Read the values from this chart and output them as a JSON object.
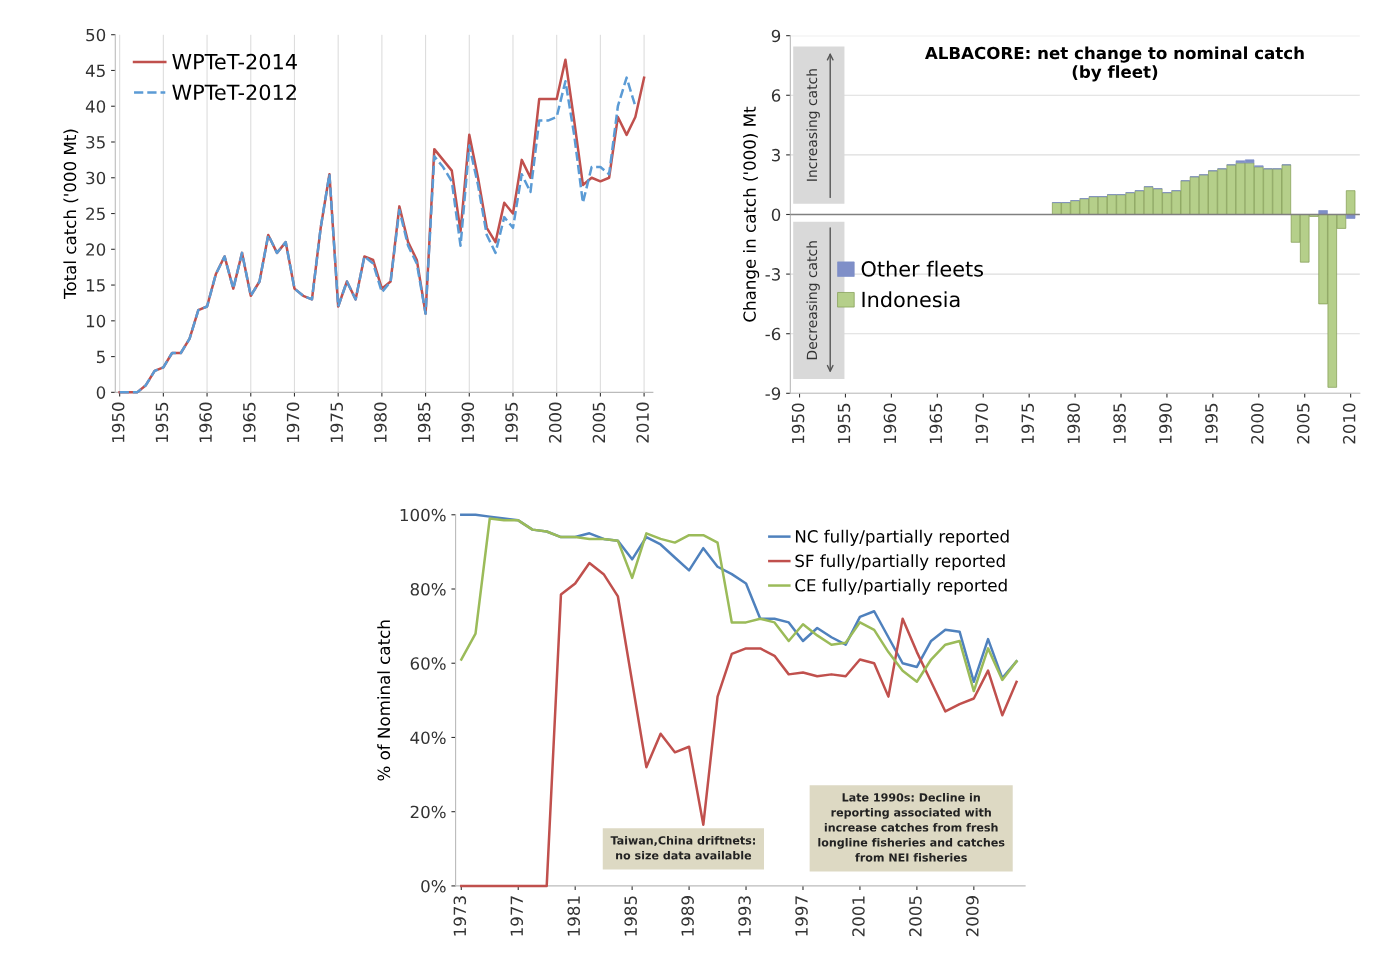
{
  "chart_data": [
    {
      "type": "line",
      "ylabel": "Total catch ('000 Mt)",
      "x": [
        1950,
        1951,
        1952,
        1953,
        1954,
        1955,
        1956,
        1957,
        1958,
        1959,
        1960,
        1961,
        1962,
        1963,
        1964,
        1965,
        1966,
        1967,
        1968,
        1969,
        1970,
        1971,
        1972,
        1973,
        1974,
        1975,
        1976,
        1977,
        1978,
        1979,
        1980,
        1981,
        1982,
        1983,
        1984,
        1985,
        1986,
        1987,
        1988,
        1989,
        1990,
        1991,
        1992,
        1993,
        1994,
        1995,
        1996,
        1997,
        1998,
        1999,
        2000,
        2001,
        2002,
        2003,
        2004,
        2005,
        2006,
        2007,
        2008,
        2009,
        2010
      ],
      "series": [
        {
          "name": "WPTeT-2014",
          "color": "#c0504d",
          "line_style": "solid",
          "values": [
            0,
            0,
            0,
            1,
            3,
            3.5,
            5.5,
            5.5,
            7.5,
            11.5,
            12,
            16.5,
            19,
            14.5,
            19.5,
            13.5,
            15.5,
            22,
            19.5,
            21,
            14.5,
            13.5,
            13,
            23,
            30.5,
            12,
            15.5,
            13,
            19,
            18.5,
            14.5,
            15.5,
            26,
            21,
            18.5,
            11,
            34,
            32.5,
            31,
            22.5,
            36,
            30,
            23,
            21,
            26.5,
            25,
            32.5,
            30,
            41,
            41,
            41,
            46.5,
            38,
            29,
            30,
            29.5,
            30,
            38.5,
            36,
            38.5,
            44
          ]
        },
        {
          "name": "WPTeT-2012",
          "color": "#5b9bd5",
          "line_style": "dashed",
          "values": [
            0,
            0,
            0,
            1,
            3,
            3.5,
            5.5,
            5.5,
            7.5,
            11.5,
            12,
            16.5,
            19,
            14.5,
            19.5,
            13.5,
            15.5,
            22,
            19.5,
            21,
            14.5,
            13.5,
            13,
            23,
            30.5,
            12,
            15.5,
            13,
            19,
            18,
            14,
            15.5,
            25.5,
            20.5,
            18,
            11,
            33,
            31.5,
            29.5,
            20.5,
            34.5,
            29,
            22,
            19.5,
            24.5,
            23,
            30.5,
            28,
            38,
            38,
            38.5,
            43.5,
            36,
            26.5,
            31.5,
            31.5,
            30.5,
            40,
            44,
            40,
            null
          ]
        }
      ],
      "xlim": [
        1949.5,
        2011
      ],
      "xticks": [
        1950,
        1955,
        1960,
        1965,
        1970,
        1975,
        1980,
        1985,
        1990,
        1995,
        2000,
        2005,
        2010
      ],
      "ylim": [
        0,
        50
      ],
      "yticks": [
        0,
        5,
        10,
        15,
        20,
        25,
        30,
        35,
        40,
        45,
        50
      ],
      "grid": "x",
      "legend": "top left"
    },
    {
      "type": "bar",
      "title": "ALBACORE: net change to nominal catch\n(by fleet)",
      "ylabel": "Change in catch ('000) Mt",
      "stacked": true,
      "x": [
        1978,
        1979,
        1980,
        1981,
        1982,
        1983,
        1984,
        1985,
        1986,
        1987,
        1988,
        1989,
        1990,
        1991,
        1992,
        1993,
        1994,
        1995,
        1996,
        1997,
        1998,
        1999,
        2000,
        2001,
        2002,
        2003,
        2004,
        2005,
        2006,
        2007,
        2008,
        2009,
        2010
      ],
      "series": [
        {
          "name": "Indonesia",
          "color": "#b5cf8a",
          "values": [
            0.6,
            0.6,
            0.7,
            0.8,
            0.9,
            0.9,
            1.0,
            1.0,
            1.1,
            1.2,
            1.4,
            1.3,
            1.1,
            1.2,
            1.7,
            1.9,
            2.0,
            2.2,
            2.3,
            2.5,
            2.6,
            2.6,
            2.4,
            2.3,
            2.3,
            2.5,
            -1.4,
            -2.4,
            -0.1,
            -4.5,
            -8.7,
            -0.7,
            1.2
          ]
        },
        {
          "name": "Other fleets",
          "color": "#7f8fc8",
          "values": [
            0,
            0,
            0,
            0,
            0,
            0,
            0,
            0,
            0,
            0,
            0,
            0,
            0,
            0,
            0,
            0,
            0,
            0,
            0,
            0,
            0.1,
            0.15,
            0.05,
            0,
            0,
            0,
            0,
            0,
            0,
            0.2,
            0,
            0,
            -0.2
          ]
        }
      ],
      "xlim": [
        1949,
        2011
      ],
      "xticks": [
        1950,
        1955,
        1960,
        1965,
        1970,
        1975,
        1980,
        1985,
        1990,
        1995,
        2000,
        2005,
        2010
      ],
      "ylim": [
        -9,
        9
      ],
      "yticks": [
        -9,
        -6,
        -3,
        0,
        3,
        6,
        9
      ],
      "grid": "y",
      "legend": "left",
      "annotations": [
        "Increasing catch",
        "Decreasing catch"
      ]
    },
    {
      "type": "line",
      "ylabel": "% of Nominal catch",
      "x": [
        1973,
        1974,
        1975,
        1976,
        1977,
        1978,
        1979,
        1980,
        1981,
        1982,
        1983,
        1984,
        1985,
        1986,
        1987,
        1988,
        1989,
        1990,
        1991,
        1992,
        1993,
        1994,
        1995,
        1996,
        1997,
        1998,
        1999,
        2000,
        2001,
        2002,
        2003,
        2004,
        2005,
        2006,
        2007,
        2008,
        2009,
        2010,
        2011,
        2012
      ],
      "series": [
        {
          "name": "NC fully/partially reported",
          "color": "#4f81bd",
          "values": [
            100,
            100,
            99.5,
            99,
            98.5,
            96,
            95.5,
            94,
            94,
            95,
            93.5,
            93,
            88,
            94,
            92,
            88.5,
            85,
            91,
            86,
            84,
            81.5,
            72,
            72,
            71,
            66,
            69.5,
            67,
            65,
            72.5,
            74,
            67,
            60,
            59,
            66,
            69,
            68.5,
            55,
            66.5,
            56,
            60.5
          ]
        },
        {
          "name": "SF fully/partially reported",
          "color": "#c0504d",
          "values": [
            0,
            0,
            0,
            0,
            0,
            0,
            0,
            78.5,
            81.5,
            87,
            84,
            78,
            55,
            32,
            41,
            36,
            37.5,
            16.5,
            51,
            62.5,
            64,
            64,
            62,
            57,
            57.5,
            56.5,
            57,
            56.5,
            61,
            60,
            51,
            72,
            63,
            55,
            47,
            49,
            50.5,
            58,
            46,
            55
          ]
        },
        {
          "name": "CE fully/partially reported",
          "color": "#9bbb59",
          "values": [
            61,
            68,
            99,
            98.5,
            98.5,
            96,
            95.5,
            94,
            94,
            93.5,
            93.5,
            93,
            83,
            95,
            93.5,
            92.5,
            94.5,
            94.5,
            92.5,
            71,
            71,
            72,
            71,
            66,
            70.5,
            67.5,
            65,
            65.5,
            71,
            69,
            63,
            58,
            55,
            61,
            65,
            66,
            52.5,
            64,
            55.5,
            60.5
          ]
        }
      ],
      "xlim": [
        1972.6,
        2012.6
      ],
      "xticks": [
        1973,
        1977,
        1981,
        1985,
        1989,
        1993,
        1997,
        2001,
        2005,
        2009
      ],
      "ylim": [
        0,
        100
      ],
      "yticks": [
        {
          "value": 0,
          "label": "0%"
        },
        {
          "value": 20,
          "label": "20%"
        },
        {
          "value": 40,
          "label": "40%"
        },
        {
          "value": 60,
          "label": "60%"
        },
        {
          "value": 80,
          "label": "80%"
        },
        {
          "value": 100,
          "label": "100%"
        }
      ],
      "legend": "top right",
      "annotations": [
        "Taiwan,China driftnets:\nno size data available",
        "Late 1990s: Decline in\nreporting associated with\nincrease catches from fresh\nlongline fisheries and catches\nfrom NEI fisheries"
      ]
    }
  ]
}
